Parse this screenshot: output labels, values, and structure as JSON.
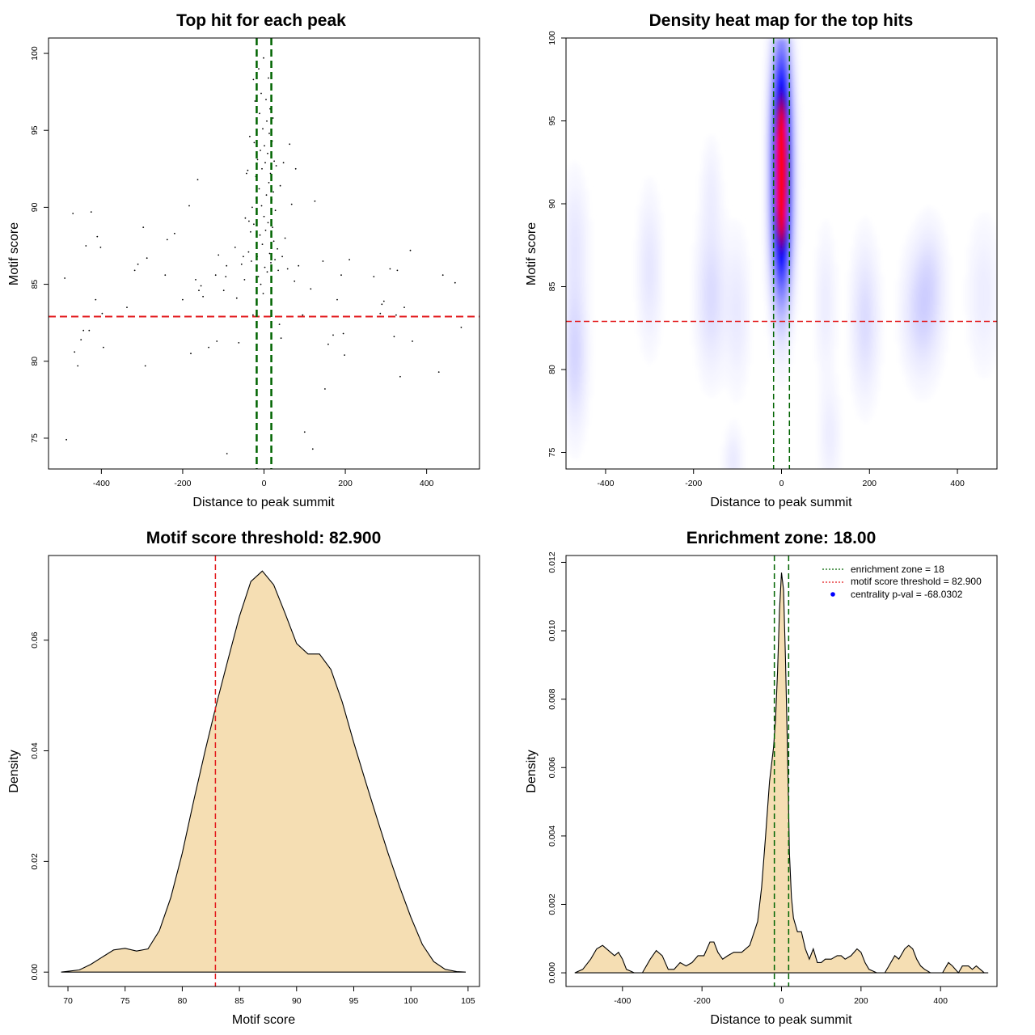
{
  "colors": {
    "threshold": "#e31a1c",
    "zone": "#006400",
    "fill": "#f5deb3",
    "point": "#000000",
    "heat_low": "#ffffff",
    "heat_mid": "#0000ff",
    "heat_high": "#ff0000",
    "legend_dot": "#0000ff"
  },
  "chart_data": [
    {
      "type": "scatter",
      "title": "Top hit for each peak",
      "xlabel": "Distance to peak summit",
      "ylabel": "Motif score",
      "xlim": [
        -530,
        530
      ],
      "ylim": [
        73.0,
        101.0
      ],
      "xticks": [
        -400,
        -200,
        0,
        200,
        400
      ],
      "yticks": [
        75,
        80,
        85,
        90,
        95,
        100
      ],
      "tick_labels_x": [
        "-400",
        "-200",
        "0",
        "200",
        "400"
      ],
      "tick_labels_y": [
        "75",
        "80",
        "85",
        "90",
        "95",
        "100"
      ],
      "hline": 82.9,
      "vlines": [
        -18,
        18
      ],
      "points": [
        [
          -490,
          85.4
        ],
        [
          -486,
          74.9
        ],
        [
          -470,
          89.6
        ],
        [
          -466,
          80.6
        ],
        [
          -458,
          79.7
        ],
        [
          -450,
          81.4
        ],
        [
          -444,
          82.0
        ],
        [
          -438,
          87.5
        ],
        [
          -430,
          82.0
        ],
        [
          -425,
          89.7
        ],
        [
          -414,
          84.0
        ],
        [
          -410,
          88.1
        ],
        [
          -402,
          87.4
        ],
        [
          -398,
          83.1
        ],
        [
          -395,
          80.9
        ],
        [
          -337,
          83.5
        ],
        [
          -318,
          85.9
        ],
        [
          -310,
          86.3
        ],
        [
          -304,
          82.9
        ],
        [
          -297,
          88.7
        ],
        [
          -292,
          79.7
        ],
        [
          -288,
          86.7
        ],
        [
          -243,
          85.6
        ],
        [
          -238,
          87.9
        ],
        [
          -220,
          88.3
        ],
        [
          -200,
          84.0
        ],
        [
          -184,
          90.1
        ],
        [
          -180,
          80.5
        ],
        [
          -168,
          85.3
        ],
        [
          -163,
          91.8
        ],
        [
          -160,
          84.6
        ],
        [
          -155,
          84.9
        ],
        [
          -150,
          84.2
        ],
        [
          -136,
          80.9
        ],
        [
          -119,
          85.6
        ],
        [
          -116,
          81.3
        ],
        [
          -112,
          86.9
        ],
        [
          -99,
          84.6
        ],
        [
          -94,
          85.5
        ],
        [
          -92,
          86.2
        ],
        [
          -91,
          74.0
        ],
        [
          -71,
          87.4
        ],
        [
          -67,
          84.1
        ],
        [
          -62,
          81.2
        ],
        [
          -55,
          86.3
        ],
        [
          -51,
          86.8
        ],
        [
          -48,
          85.3
        ],
        [
          -46,
          89.3
        ],
        [
          -43,
          92.2
        ],
        [
          -40,
          92.4
        ],
        [
          -38,
          87.1
        ],
        [
          -37,
          89.1
        ],
        [
          -35,
          94.6
        ],
        [
          -33,
          88.4
        ],
        [
          -31,
          86.5
        ],
        [
          -29,
          90.0
        ],
        [
          -27,
          83.0
        ],
        [
          -26,
          98.3
        ],
        [
          -25,
          88.9
        ],
        [
          -24,
          94.2
        ],
        [
          -22,
          96.9
        ],
        [
          -20,
          92.0
        ],
        [
          -19,
          90.6
        ],
        [
          -17,
          86.8
        ],
        [
          -16,
          93.1
        ],
        [
          -14,
          85.5
        ],
        [
          -13,
          99.0
        ],
        [
          -12,
          91.2
        ],
        [
          -11,
          96.1
        ],
        [
          -10,
          88.2
        ],
        [
          -9,
          93.7
        ],
        [
          -8,
          85.0
        ],
        [
          -7,
          97.4
        ],
        [
          -6,
          90.1
        ],
        [
          -5,
          92.5
        ],
        [
          -4,
          87.6
        ],
        [
          -3,
          95.1
        ],
        [
          -2,
          84.4
        ],
        [
          -1,
          99.7
        ],
        [
          0,
          89.4
        ],
        [
          1,
          94.0
        ],
        [
          2,
          86.1
        ],
        [
          3,
          92.9
        ],
        [
          4,
          88.5
        ],
        [
          5,
          97.0
        ],
        [
          6,
          90.8
        ],
        [
          7,
          95.6
        ],
        [
          8,
          85.8
        ],
        [
          9,
          93.5
        ],
        [
          10,
          89.0
        ],
        [
          11,
          98.4
        ],
        [
          12,
          91.6
        ],
        [
          13,
          94.8
        ],
        [
          14,
          87.0
        ],
        [
          15,
          96.4
        ],
        [
          16,
          92.2
        ],
        [
          17,
          86.4
        ],
        [
          19,
          90.5
        ],
        [
          20,
          94.3
        ],
        [
          21,
          88.7
        ],
        [
          22,
          95.8
        ],
        [
          23,
          91.0
        ],
        [
          24,
          87.8
        ],
        [
          25,
          93.0
        ],
        [
          27,
          86.6
        ],
        [
          28,
          89.8
        ],
        [
          30,
          92.7
        ],
        [
          33,
          87.3
        ],
        [
          35,
          85.9
        ],
        [
          38,
          82.4
        ],
        [
          40,
          91.4
        ],
        [
          42,
          81.5
        ],
        [
          45,
          86.8
        ],
        [
          48,
          92.9
        ],
        [
          52,
          88.0
        ],
        [
          58,
          86.0
        ],
        [
          63,
          94.1
        ],
        [
          68,
          90.2
        ],
        [
          75,
          85.2
        ],
        [
          78,
          92.5
        ],
        [
          85,
          86.2
        ],
        [
          95,
          83.0
        ],
        [
          100,
          75.4
        ],
        [
          115,
          84.7
        ],
        [
          120,
          74.3
        ],
        [
          125,
          90.4
        ],
        [
          145,
          86.5
        ],
        [
          150,
          78.2
        ],
        [
          158,
          81.1
        ],
        [
          170,
          81.7
        ],
        [
          180,
          84.0
        ],
        [
          190,
          85.6
        ],
        [
          195,
          81.8
        ],
        [
          198,
          80.4
        ],
        [
          210,
          86.6
        ],
        [
          270,
          85.5
        ],
        [
          286,
          83.1
        ],
        [
          290,
          83.7
        ],
        [
          295,
          83.9
        ],
        [
          310,
          86.0
        ],
        [
          320,
          81.6
        ],
        [
          325,
          83.0
        ],
        [
          328,
          85.9
        ],
        [
          335,
          79.0
        ],
        [
          345,
          83.5
        ],
        [
          360,
          87.2
        ],
        [
          365,
          81.3
        ],
        [
          430,
          79.3
        ],
        [
          440,
          85.6
        ],
        [
          470,
          85.1
        ],
        [
          485,
          82.2
        ]
      ]
    },
    {
      "type": "heatmap",
      "title": "Density heat map for the top hits",
      "xlabel": "Distance to peak summit",
      "ylabel": "Motif score",
      "xlim": [
        -490,
        490
      ],
      "ylim": [
        74.0,
        100.0
      ],
      "xticks": [
        -400,
        -200,
        0,
        200,
        400
      ],
      "yticks": [
        75,
        80,
        85,
        90,
        95,
        100
      ],
      "tick_labels_x": [
        "-400",
        "-200",
        "0",
        "200",
        "400"
      ],
      "tick_labels_y": [
        "75",
        "80",
        "85",
        "90",
        "95",
        "100"
      ],
      "hline": 82.9,
      "vlines": [
        -18,
        18
      ],
      "density_peak": [
        0,
        92.0
      ],
      "blobs": [
        {
          "x": 0,
          "y": 92.0,
          "sx": 14,
          "sy": 4.3,
          "w": 1.0
        },
        {
          "x": 0,
          "y": 95.5,
          "sx": 16,
          "sy": 3.5,
          "w": 0.25
        },
        {
          "x": 0,
          "y": 88.0,
          "sx": 16,
          "sy": 3.0,
          "w": 0.25
        },
        {
          "x": -470,
          "y": 81.0,
          "sx": 18,
          "sy": 3.0,
          "w": 0.12
        },
        {
          "x": -470,
          "y": 88.0,
          "sx": 20,
          "sy": 2.5,
          "w": 0.06
        },
        {
          "x": -300,
          "y": 86.0,
          "sx": 18,
          "sy": 3.0,
          "w": 0.07
        },
        {
          "x": -160,
          "y": 84.5,
          "sx": 22,
          "sy": 3.0,
          "w": 0.1
        },
        {
          "x": -160,
          "y": 91.0,
          "sx": 15,
          "sy": 2.0,
          "w": 0.04
        },
        {
          "x": -100,
          "y": 83.5,
          "sx": 18,
          "sy": 3.0,
          "w": 0.06
        },
        {
          "x": -110,
          "y": 74.5,
          "sx": 14,
          "sy": 1.2,
          "w": 0.06
        },
        {
          "x": 110,
          "y": 76.0,
          "sx": 16,
          "sy": 2.0,
          "w": 0.05
        },
        {
          "x": 100,
          "y": 84.0,
          "sx": 16,
          "sy": 3.0,
          "w": 0.05
        },
        {
          "x": 190,
          "y": 83.0,
          "sx": 20,
          "sy": 3.0,
          "w": 0.1
        },
        {
          "x": 320,
          "y": 83.5,
          "sx": 28,
          "sy": 2.5,
          "w": 0.12
        },
        {
          "x": 340,
          "y": 86.0,
          "sx": 22,
          "sy": 2.0,
          "w": 0.05
        },
        {
          "x": 460,
          "y": 84.5,
          "sx": 25,
          "sy": 3.0,
          "w": 0.05
        }
      ]
    },
    {
      "type": "area",
      "title": "Motif score threshold: 82.900",
      "xlabel": "Motif score",
      "ylabel": "Density",
      "xlim": [
        68.3,
        106.0
      ],
      "ylim": [
        -0.0026,
        0.0753
      ],
      "xticks": [
        70,
        75,
        80,
        85,
        90,
        95,
        100,
        105
      ],
      "yticks": [
        0.0,
        0.02,
        0.04,
        0.06
      ],
      "tick_labels_x": [
        "70",
        "75",
        "80",
        "85",
        "90",
        "95",
        "100",
        "105"
      ],
      "tick_labels_y": [
        "0.00",
        "0.02",
        "0.04",
        "0.06"
      ],
      "vline": 82.9,
      "x": [
        69.4,
        71,
        72,
        73,
        74,
        75,
        76,
        77,
        78,
        79,
        80,
        81,
        82,
        83,
        84,
        85,
        86,
        87,
        88,
        89,
        90,
        91,
        92,
        93,
        94,
        95,
        96,
        97,
        98,
        99,
        100,
        101,
        102,
        103,
        104,
        104.8
      ],
      "y": [
        0.0,
        0.0004,
        0.0014,
        0.0027,
        0.004,
        0.0043,
        0.0038,
        0.0042,
        0.0075,
        0.0135,
        0.0215,
        0.031,
        0.04,
        0.0485,
        0.0565,
        0.0643,
        0.0706,
        0.0725,
        0.07,
        0.0648,
        0.0594,
        0.0575,
        0.0575,
        0.0547,
        0.0488,
        0.0415,
        0.0347,
        0.028,
        0.0215,
        0.0155,
        0.0099,
        0.005,
        0.0019,
        0.0005,
        0.0001,
        0.0
      ]
    },
    {
      "type": "area",
      "title": "Enrichment zone: 18.00",
      "xlabel": "Distance to peak summit",
      "ylabel": "Density",
      "xlim": [
        -542,
        542
      ],
      "ylim": [
        -0.0004,
        0.0122
      ],
      "xticks": [
        -400,
        -200,
        0,
        200,
        400
      ],
      "yticks": [
        0.0,
        0.002,
        0.004,
        0.006,
        0.008,
        0.01,
        0.012
      ],
      "tick_labels_x": [
        "-400",
        "-200",
        "0",
        "200",
        "400"
      ],
      "tick_labels_y": [
        "0.000",
        "0.002",
        "0.004",
        "0.006",
        "0.008",
        "0.010",
        "0.012"
      ],
      "vlines": [
        -18,
        18
      ],
      "x": [
        -520,
        -500,
        -480,
        -465,
        -450,
        -430,
        -420,
        -410,
        -400,
        -390,
        -370,
        -350,
        -330,
        -315,
        -300,
        -285,
        -270,
        -255,
        -240,
        -225,
        -210,
        -195,
        -180,
        -170,
        -160,
        -148,
        -135,
        -120,
        -100,
        -80,
        -60,
        -50,
        -40,
        -30,
        -20,
        -15,
        -10,
        -5,
        0,
        5,
        10,
        15,
        20,
        25,
        30,
        40,
        50,
        60,
        70,
        80,
        90,
        100,
        110,
        125,
        140,
        150,
        160,
        175,
        190,
        200,
        210,
        220,
        240,
        260,
        270,
        285,
        295,
        310,
        320,
        330,
        340,
        350,
        360,
        375,
        390,
        405,
        420,
        430,
        445,
        455,
        470,
        480,
        490,
        500,
        510,
        520
      ],
      "y": [
        0.0,
        0.0001,
        0.0004,
        0.0007,
        0.0008,
        0.0006,
        0.0005,
        0.0006,
        0.0004,
        0.0001,
        0.0,
        0.0,
        0.0004,
        0.00065,
        0.0005,
        0.0001,
        0.0001,
        0.0003,
        0.0002,
        0.0003,
        0.0005,
        0.0005,
        0.0009,
        0.0009,
        0.0006,
        0.0004,
        0.0005,
        0.0006,
        0.0006,
        0.0008,
        0.0015,
        0.0025,
        0.004,
        0.0056,
        0.0066,
        0.0074,
        0.0088,
        0.0106,
        0.0117,
        0.0112,
        0.0092,
        0.0065,
        0.0035,
        0.0022,
        0.0016,
        0.0012,
        0.0012,
        0.0007,
        0.0004,
        0.0007,
        0.0003,
        0.0003,
        0.0004,
        0.0004,
        0.0005,
        0.0005,
        0.0004,
        0.0005,
        0.0007,
        0.0006,
        0.0003,
        0.0001,
        0.0,
        0.0,
        0.0002,
        0.0005,
        0.0004,
        0.0007,
        0.0008,
        0.0007,
        0.0004,
        0.0002,
        0.0001,
        0.0,
        0.0,
        0.0,
        0.0003,
        0.0002,
        0.0,
        0.0002,
        0.0002,
        0.0001,
        0.0002,
        0.0001,
        0.0,
        0.0
      ],
      "legend": [
        {
          "label": "enrichment zone = 18",
          "style": "dotted-line",
          "color": "#006400"
        },
        {
          "label": "motif score threshold = 82.900",
          "style": "dotted-line",
          "color": "#e31a1c"
        },
        {
          "label": "centrality p-val = -68.0302",
          "style": "dot",
          "color": "#0000ff"
        }
      ],
      "legend_position": "top-right"
    }
  ]
}
